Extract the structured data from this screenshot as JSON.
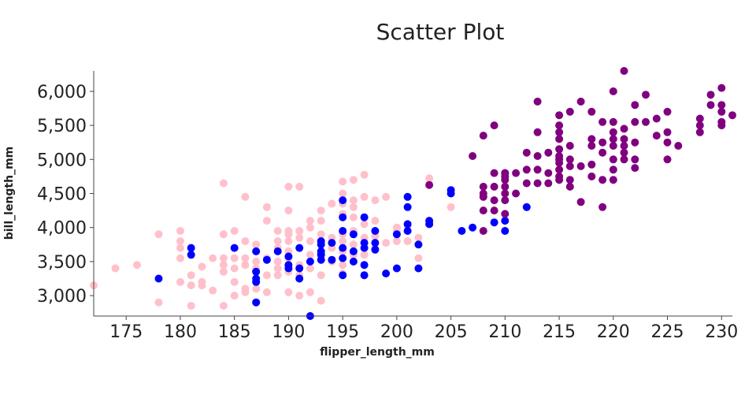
{
  "chart_data": {
    "type": "scatter",
    "title": "Scatter Plot",
    "xlabel": "flipper_length_mm",
    "ylabel": "bill_length_mm",
    "xlim": [
      172,
      231
    ],
    "ylim": [
      2700,
      6300
    ],
    "xticks": [
      175,
      180,
      185,
      190,
      195,
      200,
      205,
      210,
      215,
      220,
      225,
      230
    ],
    "xtick_labels": [
      "175",
      "180",
      "185",
      "190",
      "195",
      "200",
      "205",
      "210",
      "215",
      "220",
      "225",
      "230"
    ],
    "yticks": [
      3000,
      3500,
      4000,
      4500,
      5000,
      5500,
      6000
    ],
    "ytick_labels": [
      "3,000",
      "3,500",
      "4,000",
      "4,500",
      "5,000",
      "5,500",
      "6,000"
    ],
    "grid": false,
    "legend": "none",
    "colors": [
      "#ffc0cb",
      "#0000ff",
      "#800080"
    ],
    "series": [
      {
        "color": "#ffc0cb",
        "points": [
          [
            172,
            3150
          ],
          [
            174,
            3400
          ],
          [
            176,
            3450
          ],
          [
            178,
            3900
          ],
          [
            178,
            2900
          ],
          [
            180,
            3950
          ],
          [
            180,
            3800
          ],
          [
            180,
            3700
          ],
          [
            180,
            3550
          ],
          [
            180,
            3200
          ],
          [
            181,
            3300
          ],
          [
            181,
            3150
          ],
          [
            181,
            2850
          ],
          [
            182,
            3425
          ],
          [
            182,
            3200
          ],
          [
            182,
            3150
          ],
          [
            183,
            3550
          ],
          [
            183,
            3075
          ],
          [
            184,
            4650
          ],
          [
            184,
            3900
          ],
          [
            184,
            3550
          ],
          [
            184,
            3450
          ],
          [
            184,
            3350
          ],
          [
            184,
            2850
          ],
          [
            185,
            3950
          ],
          [
            185,
            3700
          ],
          [
            185,
            3550
          ],
          [
            185,
            3400
          ],
          [
            185,
            3200
          ],
          [
            185,
            3000
          ],
          [
            186,
            4450
          ],
          [
            186,
            3800
          ],
          [
            186,
            3550
          ],
          [
            186,
            3450
          ],
          [
            186,
            3100
          ],
          [
            186,
            3050
          ],
          [
            187,
            3750
          ],
          [
            187,
            3650
          ],
          [
            187,
            3500
          ],
          [
            187,
            3400
          ],
          [
            187,
            3350
          ],
          [
            187,
            3200
          ],
          [
            187,
            3100
          ],
          [
            188,
            4300
          ],
          [
            188,
            4100
          ],
          [
            188,
            3550
          ],
          [
            188,
            3300
          ],
          [
            188,
            3050
          ],
          [
            189,
            3950
          ],
          [
            189,
            3800
          ],
          [
            189,
            3700
          ],
          [
            189,
            3500
          ],
          [
            189,
            3400
          ],
          [
            189,
            3300
          ],
          [
            190,
            4600
          ],
          [
            190,
            4250
          ],
          [
            190,
            3950
          ],
          [
            190,
            3900
          ],
          [
            190,
            3800
          ],
          [
            190,
            3650
          ],
          [
            190,
            3550
          ],
          [
            190,
            3350
          ],
          [
            190,
            3050
          ],
          [
            191,
            4600
          ],
          [
            191,
            3950
          ],
          [
            191,
            3850
          ],
          [
            191,
            3700
          ],
          [
            191,
            3450
          ],
          [
            191,
            3300
          ],
          [
            191,
            3000
          ],
          [
            192,
            4100
          ],
          [
            192,
            4000
          ],
          [
            192,
            3800
          ],
          [
            192,
            3600
          ],
          [
            192,
            3400
          ],
          [
            192,
            3050
          ],
          [
            193,
            4250
          ],
          [
            193,
            4100
          ],
          [
            193,
            3900
          ],
          [
            193,
            3800
          ],
          [
            193,
            3600
          ],
          [
            193,
            3550
          ],
          [
            193,
            3300
          ],
          [
            193,
            2925
          ],
          [
            194,
            4350
          ],
          [
            194,
            3850
          ],
          [
            194,
            3700
          ],
          [
            194,
            3500
          ],
          [
            195,
            4675
          ],
          [
            195,
            4500
          ],
          [
            195,
            4400
          ],
          [
            195,
            4350
          ],
          [
            195,
            4200
          ],
          [
            195,
            4150
          ],
          [
            195,
            3900
          ],
          [
            195,
            3800
          ],
          [
            195,
            3650
          ],
          [
            195,
            3450
          ],
          [
            195,
            3325
          ],
          [
            196,
            4700
          ],
          [
            196,
            4400
          ],
          [
            196,
            4300
          ],
          [
            196,
            4150
          ],
          [
            196,
            3950
          ],
          [
            196,
            3750
          ],
          [
            196,
            3600
          ],
          [
            197,
            4775
          ],
          [
            197,
            4450
          ],
          [
            197,
            4050
          ],
          [
            197,
            3850
          ],
          [
            197,
            3600
          ],
          [
            198,
            4400
          ],
          [
            198,
            4100
          ],
          [
            198,
            3875
          ],
          [
            198,
            3700
          ],
          [
            199,
            4450
          ],
          [
            199,
            3775
          ],
          [
            200,
            4000
          ],
          [
            200,
            3950
          ],
          [
            200,
            3800
          ],
          [
            201,
            4025
          ],
          [
            201,
            3800
          ],
          [
            202,
            3850
          ],
          [
            202,
            3550
          ],
          [
            203,
            4725
          ],
          [
            203,
            4050
          ],
          [
            205,
            4550
          ],
          [
            205,
            4300
          ]
        ]
      },
      {
        "color": "#0000ff",
        "points": [
          [
            178,
            3250
          ],
          [
            181,
            3700
          ],
          [
            181,
            3600
          ],
          [
            185,
            3700
          ],
          [
            187,
            3650
          ],
          [
            187,
            3350
          ],
          [
            187,
            3250
          ],
          [
            187,
            3200
          ],
          [
            187,
            2900
          ],
          [
            188,
            3525
          ],
          [
            189,
            3650
          ],
          [
            190,
            3575
          ],
          [
            190,
            3450
          ],
          [
            190,
            3400
          ],
          [
            191,
            3700
          ],
          [
            191,
            3400
          ],
          [
            191,
            3250
          ],
          [
            192,
            2700
          ],
          [
            192,
            3500
          ],
          [
            193,
            3800
          ],
          [
            193,
            3750
          ],
          [
            193,
            3650
          ],
          [
            193,
            3600
          ],
          [
            193,
            3525
          ],
          [
            194,
            3775
          ],
          [
            194,
            3525
          ],
          [
            195,
            4400
          ],
          [
            195,
            4150
          ],
          [
            195,
            3950
          ],
          [
            195,
            3700
          ],
          [
            195,
            3550
          ],
          [
            195,
            3300
          ],
          [
            196,
            3900
          ],
          [
            196,
            3650
          ],
          [
            196,
            3500
          ],
          [
            197,
            4150
          ],
          [
            197,
            3775
          ],
          [
            197,
            3700
          ],
          [
            197,
            3450
          ],
          [
            197,
            3300
          ],
          [
            198,
            3950
          ],
          [
            198,
            3775
          ],
          [
            198,
            3675
          ],
          [
            199,
            3325
          ],
          [
            200,
            3900
          ],
          [
            200,
            3400
          ],
          [
            201,
            4450
          ],
          [
            201,
            4300
          ],
          [
            201,
            4050
          ],
          [
            201,
            3950
          ],
          [
            202,
            3750
          ],
          [
            202,
            3400
          ],
          [
            203,
            4100
          ],
          [
            203,
            4050
          ],
          [
            205,
            4550
          ],
          [
            205,
            4500
          ],
          [
            206,
            3950
          ],
          [
            207,
            4000
          ],
          [
            209,
            4075
          ],
          [
            210,
            4800
          ],
          [
            210,
            4100
          ],
          [
            210,
            3950
          ],
          [
            212,
            4300
          ]
        ]
      },
      {
        "color": "#800080",
        "points": [
          [
            203,
            4625
          ],
          [
            207,
            5050
          ],
          [
            208,
            5350
          ],
          [
            208,
            4600
          ],
          [
            208,
            4500
          ],
          [
            208,
            4450
          ],
          [
            208,
            4250
          ],
          [
            208,
            3950
          ],
          [
            209,
            5500
          ],
          [
            209,
            4800
          ],
          [
            209,
            4600
          ],
          [
            209,
            4400
          ],
          [
            209,
            4250
          ],
          [
            210,
            4800
          ],
          [
            210,
            4750
          ],
          [
            210,
            4700
          ],
          [
            210,
            4600
          ],
          [
            210,
            4500
          ],
          [
            210,
            4400
          ],
          [
            210,
            4200
          ],
          [
            211,
            4800
          ],
          [
            211,
            4500
          ],
          [
            212,
            5100
          ],
          [
            212,
            4850
          ],
          [
            212,
            4650
          ],
          [
            213,
            5850
          ],
          [
            213,
            5400
          ],
          [
            213,
            5050
          ],
          [
            213,
            4850
          ],
          [
            213,
            4650
          ],
          [
            214,
            5100
          ],
          [
            214,
            4800
          ],
          [
            214,
            4650
          ],
          [
            215,
            5650
          ],
          [
            215,
            5500
          ],
          [
            215,
            5400
          ],
          [
            215,
            5300
          ],
          [
            215,
            5150
          ],
          [
            215,
            5050
          ],
          [
            215,
            5000
          ],
          [
            215,
            4950
          ],
          [
            215,
            4850
          ],
          [
            215,
            4750
          ],
          [
            215,
            4700
          ],
          [
            216,
            5700
          ],
          [
            216,
            5200
          ],
          [
            216,
            5000
          ],
          [
            216,
            4900
          ],
          [
            216,
            4700
          ],
          [
            216,
            4600
          ],
          [
            217,
            5850
          ],
          [
            217,
            4900
          ],
          [
            217,
            4375
          ],
          [
            218,
            5700
          ],
          [
            218,
            5300
          ],
          [
            218,
            5200
          ],
          [
            218,
            4925
          ],
          [
            218,
            4750
          ],
          [
            219,
            5550
          ],
          [
            219,
            5250
          ],
          [
            219,
            5100
          ],
          [
            219,
            4700
          ],
          [
            219,
            4300
          ],
          [
            220,
            6000
          ],
          [
            220,
            5550
          ],
          [
            220,
            5400
          ],
          [
            220,
            5300
          ],
          [
            220,
            5200
          ],
          [
            220,
            5000
          ],
          [
            220,
            4850
          ],
          [
            220,
            4700
          ],
          [
            221,
            6300
          ],
          [
            221,
            5450
          ],
          [
            221,
            5300
          ],
          [
            221,
            5200
          ],
          [
            221,
            5100
          ],
          [
            221,
            5000
          ],
          [
            222,
            5800
          ],
          [
            222,
            5550
          ],
          [
            222,
            5250
          ],
          [
            222,
            5000
          ],
          [
            222,
            4875
          ],
          [
            223,
            5950
          ],
          [
            223,
            5550
          ],
          [
            224,
            5600
          ],
          [
            224,
            5350
          ],
          [
            225,
            5700
          ],
          [
            225,
            5400
          ],
          [
            225,
            5250
          ],
          [
            225,
            5000
          ],
          [
            226,
            5200
          ],
          [
            228,
            5600
          ],
          [
            228,
            5500
          ],
          [
            228,
            5400
          ],
          [
            229,
            5950
          ],
          [
            229,
            5800
          ],
          [
            230,
            6050
          ],
          [
            230,
            5800
          ],
          [
            230,
            5700
          ],
          [
            230,
            5550
          ],
          [
            230,
            5500
          ],
          [
            231,
            5650
          ]
        ]
      }
    ]
  }
}
